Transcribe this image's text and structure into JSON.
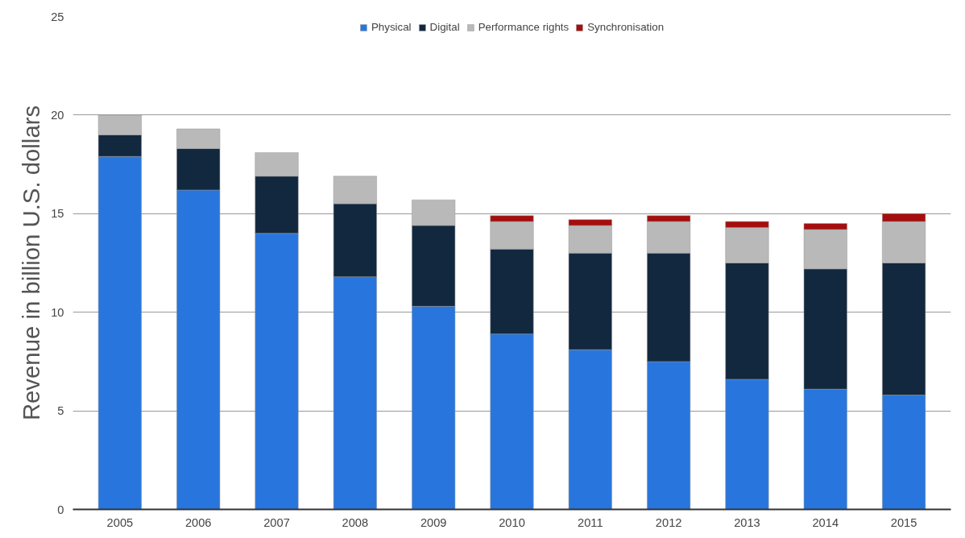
{
  "chart_data": {
    "type": "bar",
    "stacked": true,
    "ylabel": "Revenue in billion U.S. dollars",
    "categories": [
      "2005",
      "2006",
      "2007",
      "2008",
      "2009",
      "2010",
      "2011",
      "2012",
      "2013",
      "2014",
      "2015"
    ],
    "series": [
      {
        "name": "Physical",
        "color": "#2876dd",
        "values": [
          17.9,
          16.2,
          14.0,
          11.8,
          10.3,
          8.9,
          8.1,
          7.5,
          6.6,
          6.1,
          5.8
        ]
      },
      {
        "name": "Digital",
        "color": "#12283f",
        "values": [
          1.1,
          2.1,
          2.9,
          3.7,
          4.1,
          4.3,
          4.9,
          5.5,
          5.9,
          6.1,
          6.7
        ]
      },
      {
        "name": "Performance rights",
        "color": "#b9b9b9",
        "values": [
          1.0,
          1.0,
          1.2,
          1.4,
          1.3,
          1.4,
          1.4,
          1.6,
          1.8,
          2.0,
          2.1
        ]
      },
      {
        "name": "Synchronisation",
        "color": "#a50e0e",
        "values": [
          null,
          null,
          null,
          null,
          null,
          0.3,
          0.3,
          0.3,
          0.3,
          0.3,
          0.4
        ]
      }
    ],
    "ylim": [
      0,
      25
    ],
    "yticks": [
      0,
      5,
      10,
      15,
      20,
      25
    ],
    "grid": "y",
    "legend": "top"
  }
}
